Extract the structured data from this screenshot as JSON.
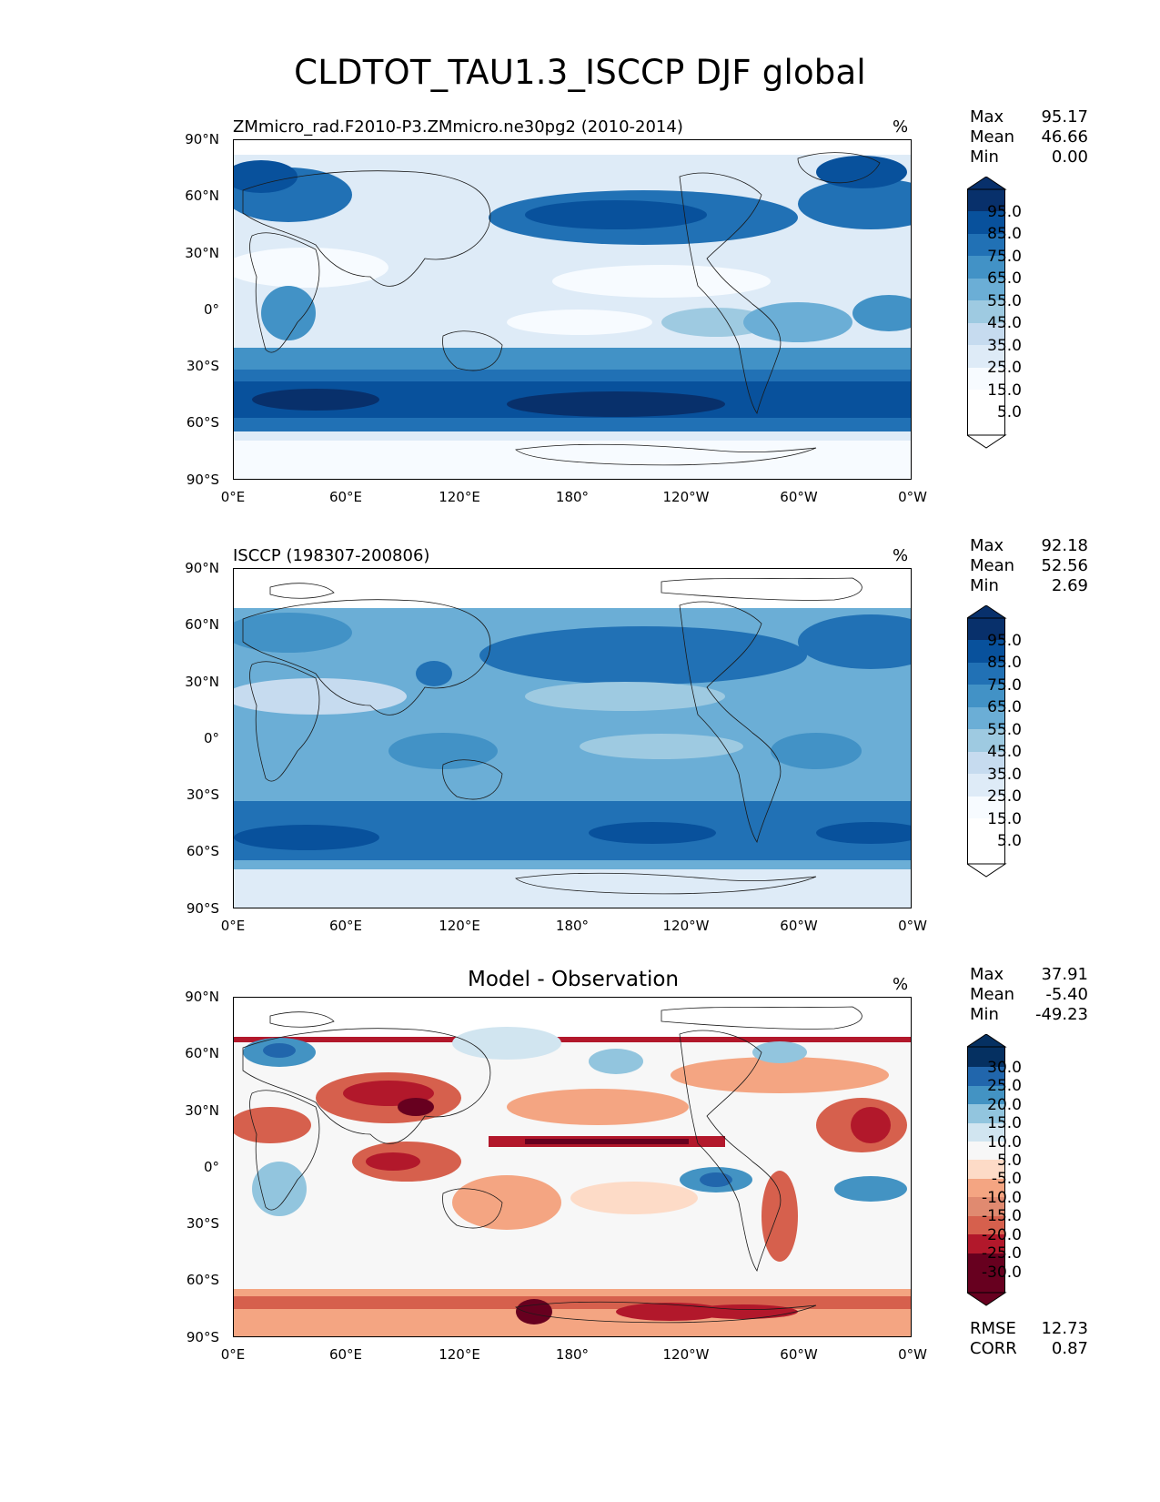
{
  "figure_title": "CLDTOT_TAU1.3_ISCCP DJF global",
  "lat_labels": [
    "90°N",
    "60°N",
    "30°N",
    "0°",
    "30°S",
    "60°S",
    "90°S"
  ],
  "lon_labels": [
    "0°E",
    "60°E",
    "120°E",
    "180°",
    "120°W",
    "60°W",
    "0°W"
  ],
  "panels": [
    {
      "title": "ZMmicro_rad.F2010-P3.ZMmicro.ne30pg2 (2010-2014)",
      "units": "%",
      "stats": [
        {
          "label": "Max",
          "value": "95.17"
        },
        {
          "label": "Mean",
          "value": "46.66"
        },
        {
          "label": "Min",
          "value": "0.00"
        }
      ],
      "colorbar_labels": [
        "95.0",
        "85.0",
        "75.0",
        "65.0",
        "55.0",
        "45.0",
        "35.0",
        "25.0",
        "15.0",
        "5.0"
      ]
    },
    {
      "title": "ISCCP (198307-200806)",
      "units": "%",
      "stats": [
        {
          "label": "Max",
          "value": "92.18"
        },
        {
          "label": "Mean",
          "value": "52.56"
        },
        {
          "label": "Min",
          "value": "2.69"
        }
      ],
      "colorbar_labels": [
        "95.0",
        "85.0",
        "75.0",
        "65.0",
        "55.0",
        "45.0",
        "35.0",
        "25.0",
        "15.0",
        "5.0"
      ]
    },
    {
      "title": "Model - Observation",
      "units": "%",
      "stats": [
        {
          "label": "Max",
          "value": "37.91"
        },
        {
          "label": "Mean",
          "value": "-5.40"
        },
        {
          "label": "Min",
          "value": "-49.23"
        }
      ],
      "colorbar_labels": [
        "30.0",
        "25.0",
        "20.0",
        "15.0",
        "10.0",
        "5.0",
        "-5.0",
        "-10.0",
        "-15.0",
        "-20.0",
        "-25.0",
        "-30.0"
      ],
      "extra_stats": [
        {
          "label": "RMSE",
          "value": "12.73"
        },
        {
          "label": "CORR",
          "value": "0.87"
        }
      ]
    }
  ],
  "colors": {
    "blues": [
      "#f7fbff",
      "#deebf7",
      "#c6dbef",
      "#9ecae1",
      "#6baed6",
      "#4292c6",
      "#2171b5",
      "#08519c",
      "#08306b"
    ],
    "diverging": [
      "#67001f",
      "#b2182b",
      "#d6604d",
      "#f4a582",
      "#fddbc7",
      "#f7f7f7",
      "#d1e5f0",
      "#92c5de",
      "#4393c3",
      "#2166ac",
      "#053061"
    ],
    "coast": "#1a1a1a"
  }
}
